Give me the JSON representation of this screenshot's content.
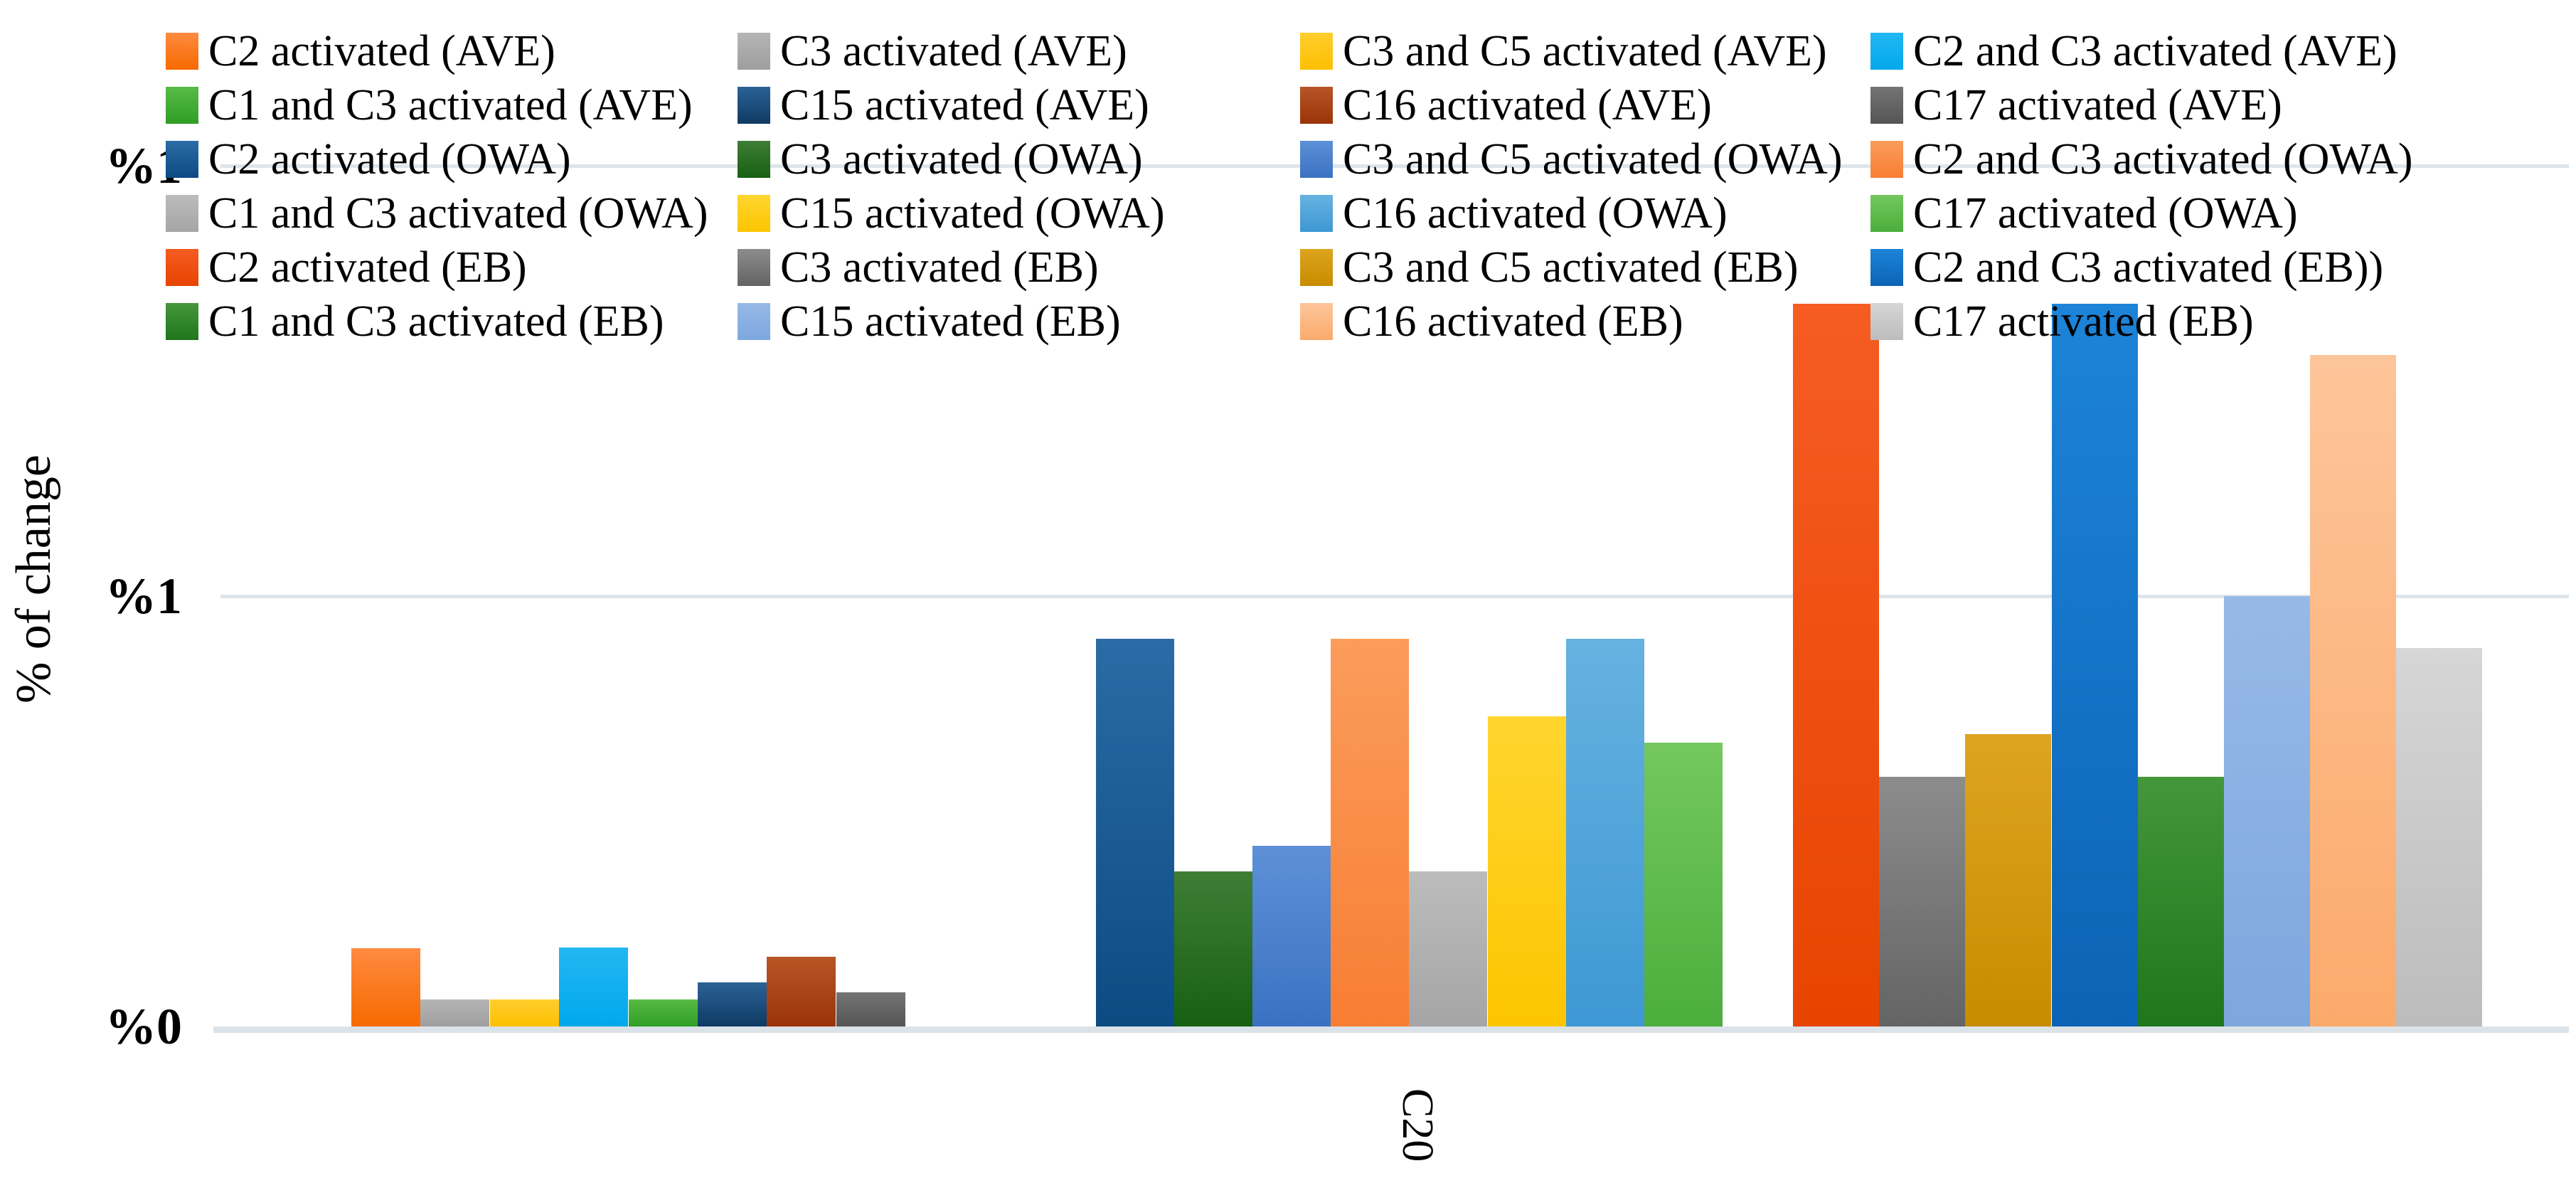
{
  "chart_data": {
    "type": "bar",
    "title": "",
    "ylabel": "% of change",
    "categories": [
      "C20"
    ],
    "x_tick_label": "C20",
    "ylim": [
      0,
      1
    ],
    "grid": true,
    "legend_position": "top",
    "legend_columns": 4,
    "y_ticks": [
      {
        "label": "%0",
        "value": 0
      },
      {
        "label": "%1",
        "value": 0.5
      },
      {
        "label": "%1",
        "value": 1
      }
    ],
    "clusters": [
      {
        "name": "AVE",
        "series": [
          {
            "label": "C2 activated (AVE)",
            "value": 0.091,
            "color_top": "#ff8a40",
            "color_bottom": "#f76a00"
          },
          {
            "label": "C3 activated (AVE)",
            "value": 0.031,
            "color_top": "#b5b5b5",
            "color_bottom": "#9e9e9e"
          },
          {
            "label": "C3 and C5 activated (AVE)",
            "value": 0.031,
            "color_top": "#ffce2e",
            "color_bottom": "#fdbf00"
          },
          {
            "label": "C2 and C3 activated (AVE)",
            "value": 0.092,
            "color_top": "#24b7f2",
            "color_bottom": "#00a8ec"
          },
          {
            "label": "C1 and C3 activated (AVE)",
            "value": 0.031,
            "color_top": "#58bb46",
            "color_bottom": "#2f9e25"
          },
          {
            "label": "C15 activated (AVE)",
            "value": 0.051,
            "color_top": "#2c6296",
            "color_bottom": "#0f3a64"
          },
          {
            "label": "C16 activated (AVE)",
            "value": 0.081,
            "color_top": "#b85527",
            "color_bottom": "#9a3408"
          },
          {
            "label": "C17 activated (AVE)",
            "value": 0.04,
            "color_top": "#747474",
            "color_bottom": "#555555"
          }
        ]
      },
      {
        "name": "OWA",
        "series": [
          {
            "label": "C2 activated (OWA)",
            "value": 0.45,
            "color_top": "#2b6ca6",
            "color_bottom": "#0c4a82"
          },
          {
            "label": "C3 activated (OWA)",
            "value": 0.18,
            "color_top": "#3f7d36",
            "color_bottom": "#176013"
          },
          {
            "label": "C3 and C5 activated (OWA)",
            "value": 0.21,
            "color_top": "#5d90d6",
            "color_bottom": "#3a72c2"
          },
          {
            "label": "C2 and C3 activated (OWA)",
            "value": 0.45,
            "color_top": "#fb9c5c",
            "color_bottom": "#f87e33"
          },
          {
            "label": "C1 and C3 activated (OWA)",
            "value": 0.18,
            "color_top": "#bcbcbc",
            "color_bottom": "#a5a5a5"
          },
          {
            "label": "C15 activated (OWA)",
            "value": 0.36,
            "color_top": "#ffd52f",
            "color_bottom": "#fcc500"
          },
          {
            "label": "C16 activated (OWA)",
            "value": 0.45,
            "color_top": "#66b2e1",
            "color_bottom": "#3e98d3"
          },
          {
            "label": "C17 activated (OWA)",
            "value": 0.33,
            "color_top": "#74c85e",
            "color_bottom": "#4bae3c"
          }
        ]
      },
      {
        "name": "EB",
        "series": [
          {
            "label": "C2 activated (EB)",
            "value": 0.84,
            "color_top": "#f65c22",
            "color_bottom": "#e74400"
          },
          {
            "label": "C3 activated (EB)",
            "value": 0.29,
            "color_top": "#8c8c8c",
            "color_bottom": "#646464"
          },
          {
            "label": "C3 and C5 activated (EB)",
            "value": 0.34,
            "color_top": "#dda41f",
            "color_bottom": "#c78c00"
          },
          {
            "label": "C2 and C3 activated (EB))",
            "value": 0.84,
            "color_top": "#1c84d8",
            "color_bottom": "#0c63b5"
          },
          {
            "label": "C1 and C3 activated (EB)",
            "value": 0.29,
            "color_top": "#44973a",
            "color_bottom": "#20761c"
          },
          {
            "label": "C15 activated (EB)",
            "value": 0.5,
            "color_top": "#97b9e8",
            "color_bottom": "#7da7de"
          },
          {
            "label": "C16 activated (EB)",
            "value": 0.78,
            "color_top": "#fdc59a",
            "color_bottom": "#fbaa6c"
          },
          {
            "label": "C17 activated (EB)",
            "value": 0.44,
            "color_top": "#d6d6d6",
            "color_bottom": "#bcbcbc"
          }
        ]
      }
    ]
  }
}
